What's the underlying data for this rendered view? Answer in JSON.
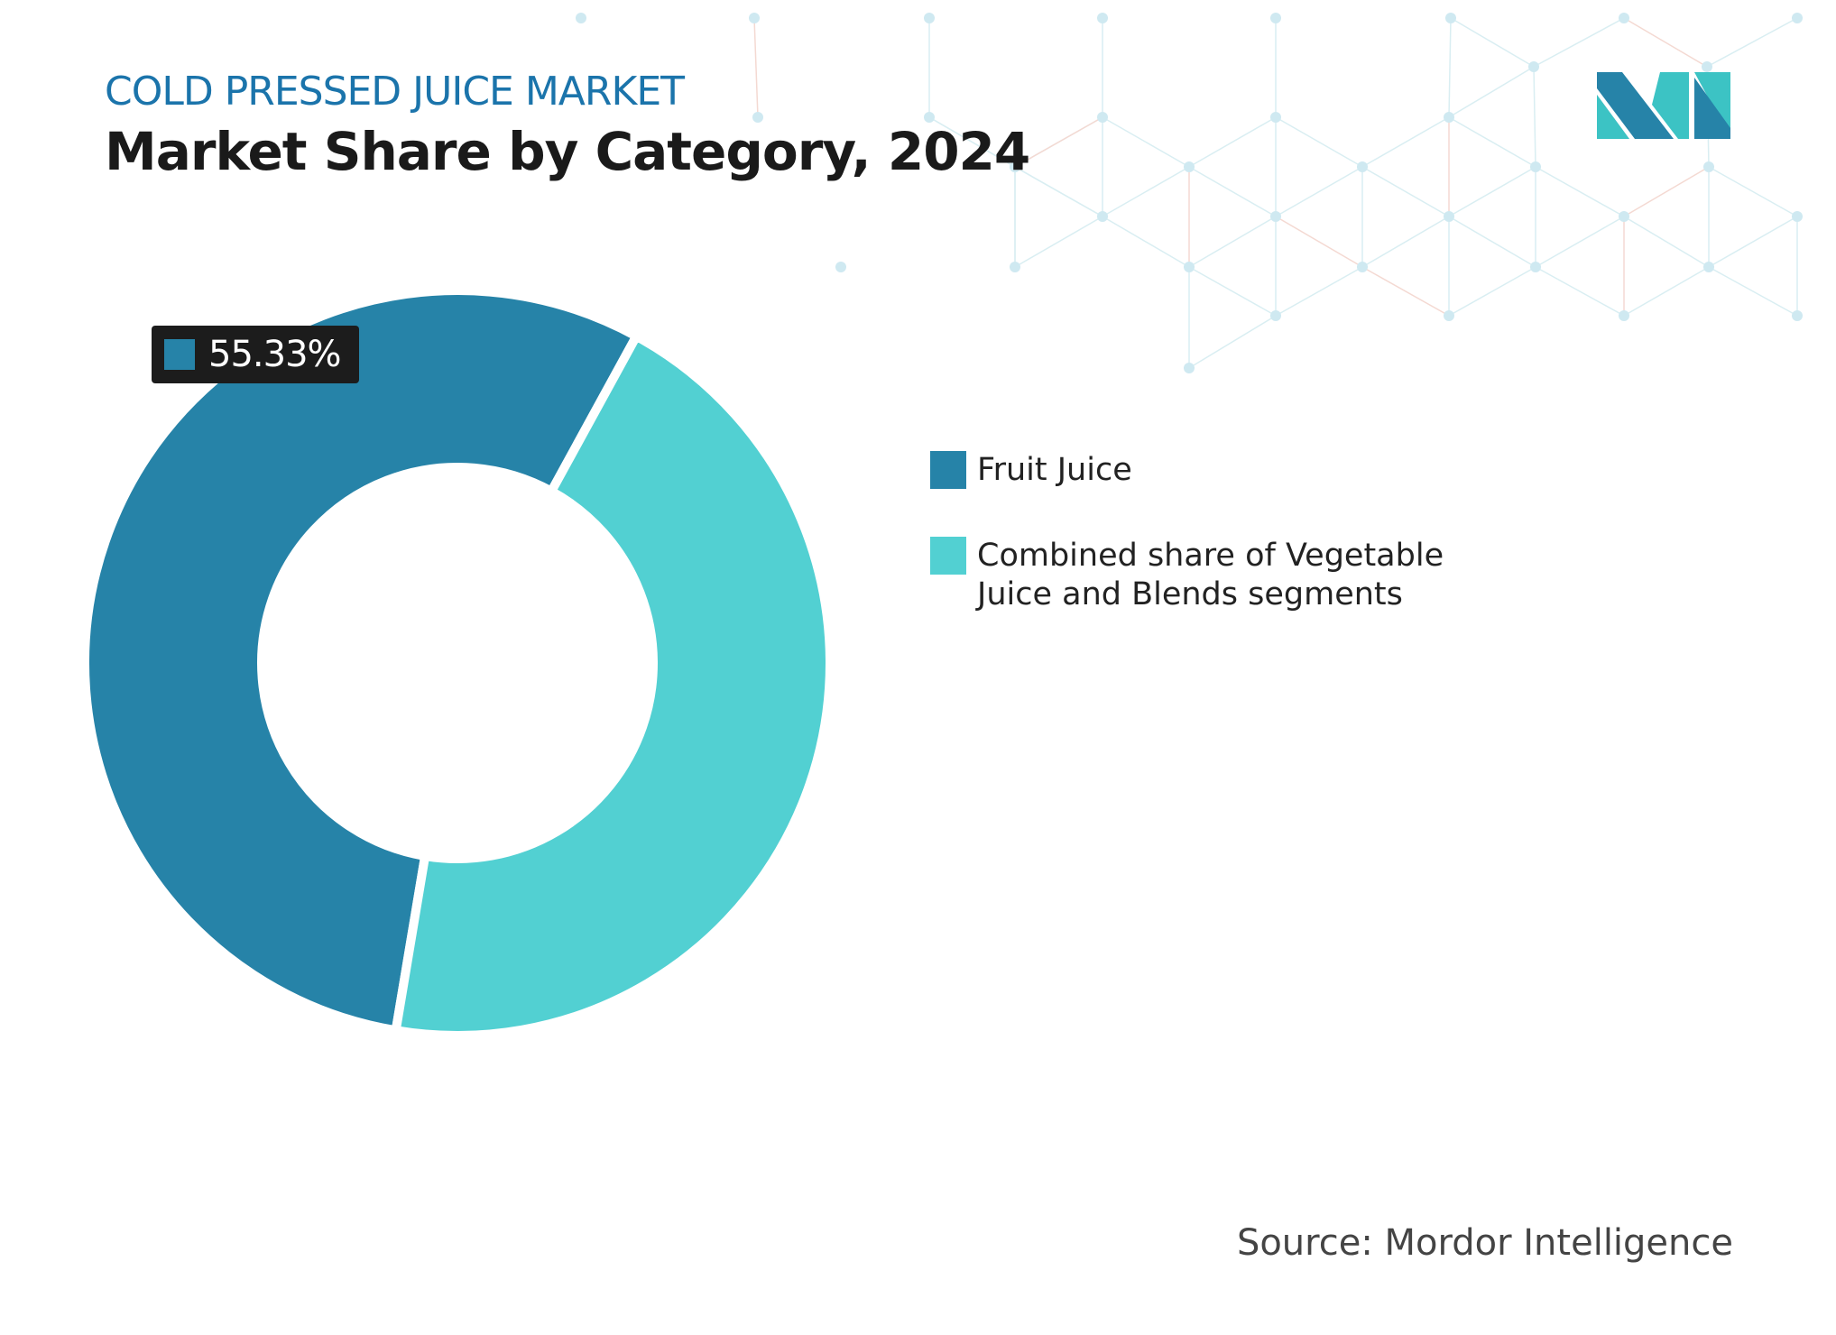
{
  "header": {
    "subtitle": "COLD PRESSED JUICE MARKET",
    "title": "Market Share by Category, 2024"
  },
  "logo": {
    "icon": "mordor-intelligence-logo",
    "colors": [
      "#2683a8",
      "#3cc3c4"
    ]
  },
  "chart_data": {
    "type": "pie",
    "subtype": "donut",
    "title": "Market Share by Category, 2024",
    "categories": [
      "Fruit Juice",
      "Combined share of Vegetable Juice and Blends segments"
    ],
    "values": [
      55.33,
      44.67
    ],
    "colors": [
      "#2683a8",
      "#52d0d2"
    ],
    "data_labels": [
      {
        "category": "Fruit Juice",
        "text": "55.33%"
      }
    ],
    "legend_placement": "right"
  },
  "source": "Source: Mordor Intelligence"
}
